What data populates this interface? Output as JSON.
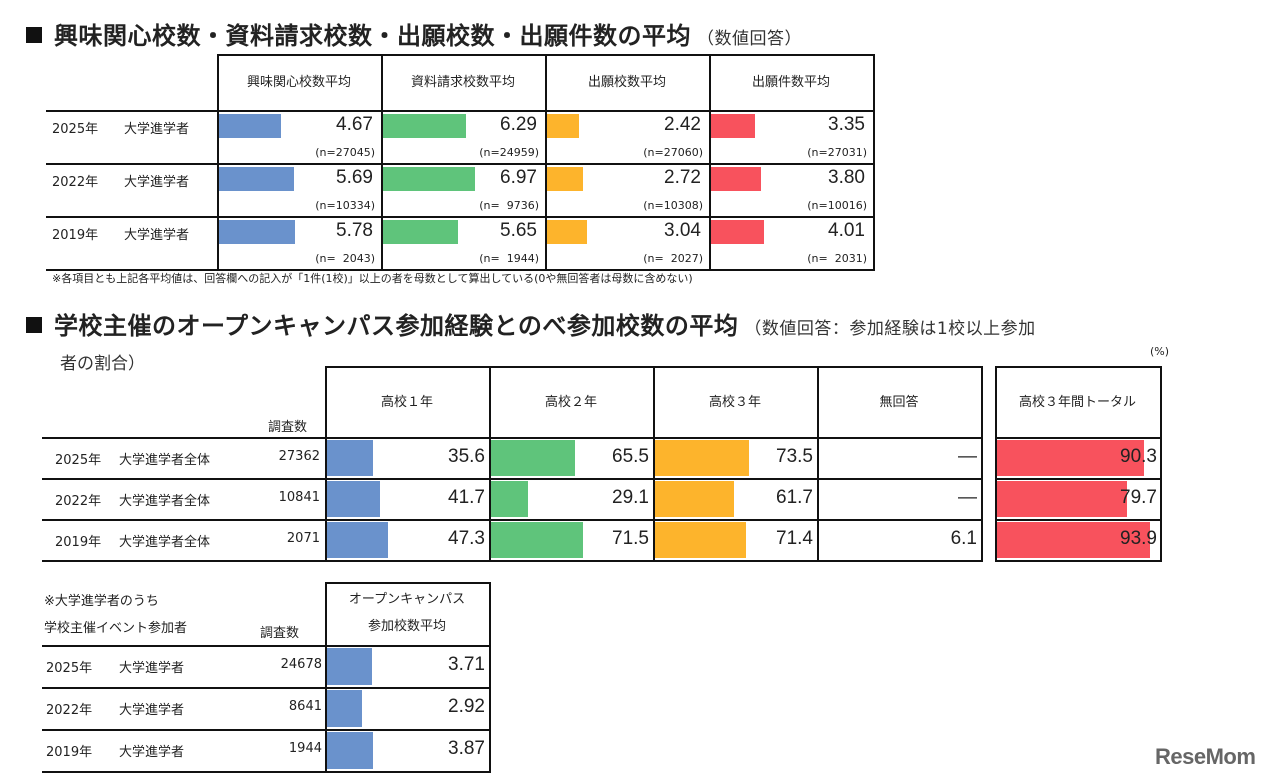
{
  "colors": {
    "blue": "#6a92cc",
    "green": "#5fc47b",
    "orange": "#fdb42c",
    "red": "#f8525d"
  },
  "section1": {
    "title": "興味関心校数・資料請求校数・出願校数・出願件数の平均",
    "subtitle": "（数値回答）",
    "headers": [
      "興味関心校数平均",
      "資料請求校数平均",
      "出願校数平均",
      "出願件数平均"
    ],
    "rows": [
      {
        "year": "2025年",
        "group": "大学進学者",
        "values": [
          "4.67",
          "6.29",
          "2.42",
          "3.35"
        ],
        "ns": [
          "(n=27045)",
          "(n=24959)",
          "(n=27060)",
          "(n=27031)"
        ]
      },
      {
        "year": "2022年",
        "group": "大学進学者",
        "values": [
          "5.69",
          "6.97",
          "2.72",
          "3.80"
        ],
        "ns": [
          "(n=10334)",
          "(n=  9736)",
          "(n=10308)",
          "(n=10016)"
        ]
      },
      {
        "year": "2019年",
        "group": "大学進学者",
        "values": [
          "5.78",
          "5.65",
          "3.04",
          "4.01"
        ],
        "ns": [
          "(n=  2043)",
          "(n=  1944)",
          "(n=  2027)",
          "(n=  2031)"
        ]
      }
    ],
    "note": "※各項目とも上記各平均値は、回答欄への記入が「1件(1校)」以上の者を母数として算出している(0や無回答者は母数に含めない)"
  },
  "section2": {
    "title": "学校主催のオープンキャンパス参加経験とのべ参加校数の平均",
    "subtitle": "（数値回答：参加経験は1校以上参加",
    "subtitle2": "者の割合）",
    "unit": "(%)",
    "count_header": "調査数",
    "headers": [
      "高校１年",
      "高校２年",
      "高校３年",
      "無回答"
    ],
    "total_header": "高校３年間トータル",
    "rows": [
      {
        "year": "2025年",
        "group": "大学進学者全体",
        "count": "27362",
        "values": [
          "35.6",
          "65.5",
          "73.5",
          "―"
        ],
        "total": "90.3"
      },
      {
        "year": "2022年",
        "group": "大学進学者全体",
        "count": "10841",
        "values": [
          "41.7",
          "29.1",
          "61.7",
          "―"
        ],
        "total": "79.7"
      },
      {
        "year": "2019年",
        "group": "大学進学者全体",
        "count": "2071",
        "values": [
          "47.3",
          "71.5",
          "71.4",
          "6.1"
        ],
        "total": "93.9"
      }
    ]
  },
  "section3": {
    "label1": "※大学進学者のうち",
    "label2": "学校主催イベント参加者",
    "count_header": "調査数",
    "header1": "オープンキャンパス",
    "header2": "参加校数平均",
    "rows": [
      {
        "year": "2025年",
        "group": "大学進学者",
        "count": "24678",
        "value": "3.71"
      },
      {
        "year": "2022年",
        "group": "大学進学者",
        "count": "8641",
        "value": "2.92"
      },
      {
        "year": "2019年",
        "group": "大学進学者",
        "count": "1944",
        "value": "3.87"
      }
    ]
  },
  "logo": "ReseMom",
  "chart_data": [
    {
      "type": "table",
      "title": "興味関心校数・資料請求校数・出願校数・出願件数の平均",
      "categories": [
        "2025年 大学進学者",
        "2022年 大学進学者",
        "2019年 大学進学者"
      ],
      "series": [
        {
          "name": "興味関心校数平均",
          "values": [
            4.67,
            5.69,
            5.78
          ],
          "n": [
            27045,
            10334,
            2043
          ]
        },
        {
          "name": "資料請求校数平均",
          "values": [
            6.29,
            6.97,
            5.65
          ],
          "n": [
            24959,
            9736,
            1944
          ]
        },
        {
          "name": "出願校数平均",
          "values": [
            2.42,
            2.72,
            3.04
          ],
          "n": [
            27060,
            10308,
            2027
          ]
        },
        {
          "name": "出願件数平均",
          "values": [
            3.35,
            3.8,
            4.01
          ],
          "n": [
            27031,
            10016,
            2031
          ]
        }
      ]
    },
    {
      "type": "table",
      "title": "学校主催のオープンキャンパス参加経験とのべ参加校数の平均",
      "categories": [
        "2025年 大学進学者全体",
        "2022年 大学進学者全体",
        "2019年 大学進学者全体"
      ],
      "counts": [
        27362,
        10841,
        2071
      ],
      "series": [
        {
          "name": "高校１年",
          "values": [
            35.6,
            41.7,
            47.3
          ]
        },
        {
          "name": "高校２年",
          "values": [
            65.5,
            29.1,
            71.5
          ]
        },
        {
          "name": "高校３年",
          "values": [
            73.5,
            61.7,
            71.4
          ]
        },
        {
          "name": "無回答",
          "values": [
            null,
            null,
            6.1
          ]
        },
        {
          "name": "高校３年間トータル",
          "values": [
            90.3,
            79.7,
            93.9
          ]
        }
      ]
    },
    {
      "type": "table",
      "categories": [
        "2025年 大学進学者",
        "2022年 大学進学者",
        "2019年 大学進学者"
      ],
      "counts": [
        24678,
        8641,
        1944
      ],
      "series": [
        {
          "name": "オープンキャンパス参加校数平均",
          "values": [
            3.71,
            2.92,
            3.87
          ]
        }
      ]
    }
  ]
}
